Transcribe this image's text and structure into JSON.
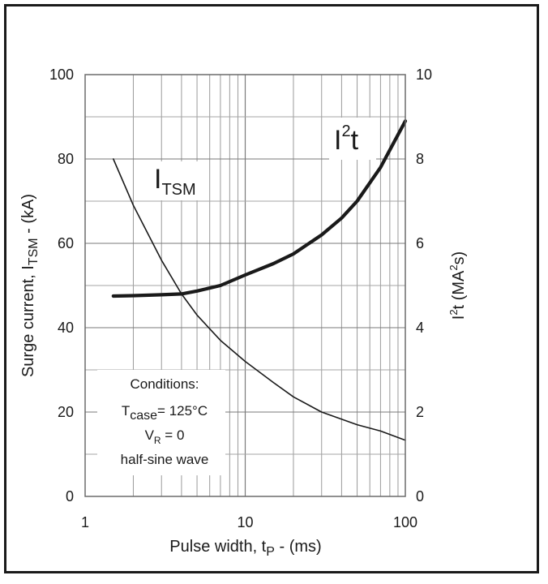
{
  "chart_data": {
    "type": "line",
    "xscale": "log",
    "xlim": [
      1,
      100
    ],
    "ylim": [
      0,
      100
    ],
    "y2lim": [
      0,
      10
    ],
    "x_ticks": [
      "1",
      "10",
      "100"
    ],
    "y_ticks": [
      "0",
      "20",
      "40",
      "60",
      "80",
      "100"
    ],
    "y2_ticks": [
      "0",
      "2",
      "4",
      "6",
      "8",
      "10"
    ],
    "xlabel": "Pulse width, t",
    "xlabel_sub": "P",
    "xlabel_suffix": " - (ms)",
    "ylabel": "Surge current, I",
    "ylabel_sub": "TSM",
    "ylabel_suffix": " - (kA)",
    "y2label_main": "I",
    "y2label_sup": "2",
    "y2label_mid": "t (MA",
    "y2label_sup2": "2",
    "y2label_end": "s)",
    "grid": true,
    "series": [
      {
        "name": "ITSM",
        "label_main": "I",
        "label_sub": "TSM",
        "axis": "left",
        "stroke": "#1a1a1a",
        "x": [
          1.5,
          2,
          3,
          4,
          5,
          7,
          10,
          15,
          20,
          30,
          50,
          70,
          100
        ],
        "y": [
          80,
          69,
          56,
          48,
          43,
          37,
          32,
          27,
          23.6,
          20,
          17,
          15.5,
          13.3
        ]
      },
      {
        "name": "I2t",
        "label_main": "I",
        "label_sup": "2",
        "label_end": "t",
        "axis": "right",
        "stroke": "#1a1a1a",
        "x": [
          1.5,
          2,
          3,
          4,
          5,
          7,
          10,
          15,
          20,
          30,
          40,
          50,
          70,
          100
        ],
        "y": [
          4.75,
          4.76,
          4.78,
          4.8,
          4.87,
          5.0,
          5.25,
          5.52,
          5.75,
          6.2,
          6.6,
          7.0,
          7.8,
          8.9
        ]
      }
    ],
    "annotation": {
      "line1": "Conditions:",
      "line2_main": "T",
      "line2_sub": "case",
      "line2_end": "= 125°C",
      "line3_main": "V",
      "line3_sub": "R",
      "line3_end": " = 0",
      "line4": "half-sine wave"
    }
  }
}
